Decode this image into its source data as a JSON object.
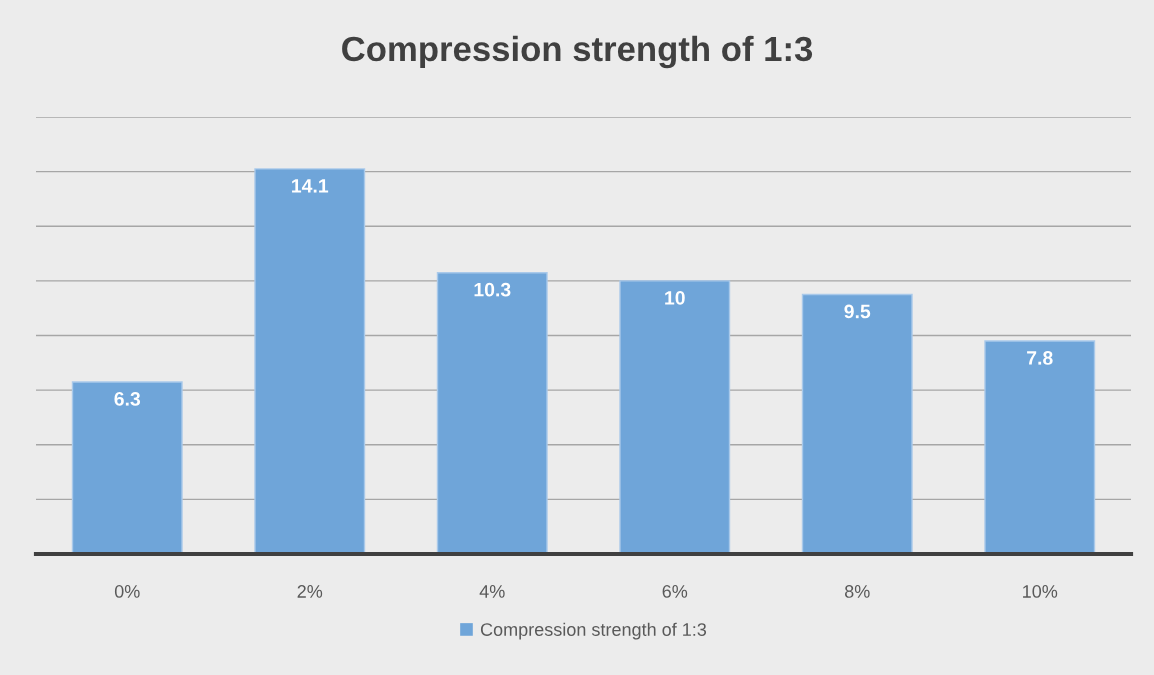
{
  "chart_data": {
    "type": "bar",
    "title": "Compression strength of 1:3",
    "categories": [
      "0%",
      "2%",
      "4%",
      "6%",
      "8%",
      "10%"
    ],
    "series": [
      {
        "name": "Compression strength of 1:3",
        "color": "#6fa5d9",
        "values": [
          6.3,
          14.1,
          10.3,
          10,
          9.5,
          7.8
        ]
      }
    ],
    "ylim": [
      0,
      16
    ],
    "yticks": [
      {
        "value": 2,
        "label": null
      },
      {
        "value": 4,
        "label": null
      },
      {
        "value": 6,
        "label": null
      },
      {
        "value": 8,
        "label": null
      },
      {
        "value": 10,
        "label": null
      },
      {
        "value": 12,
        "label": null
      },
      {
        "value": 14,
        "label": null
      },
      {
        "value": 16,
        "label": null
      }
    ],
    "grid": "y",
    "legend": "bottom",
    "data_labels": true,
    "tick_labels": "x"
  }
}
